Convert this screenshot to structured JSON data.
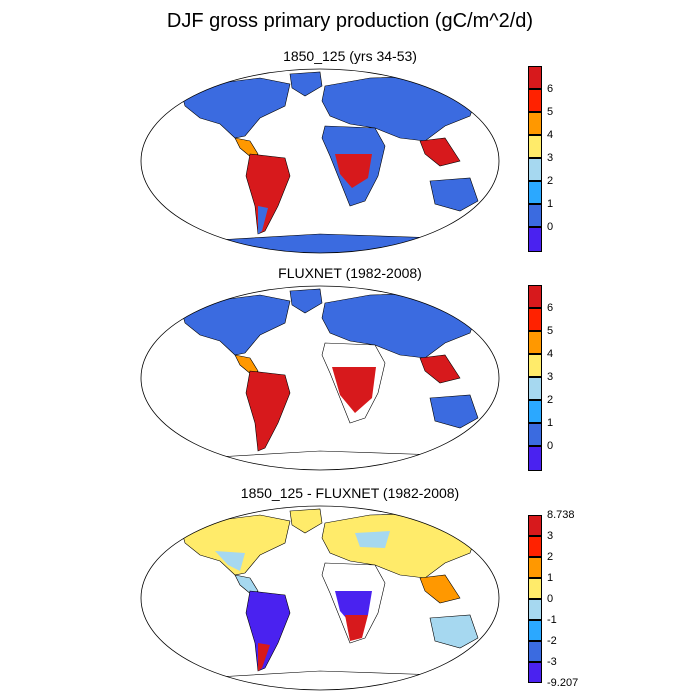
{
  "title": "DJF gross primary production (gC/m^2/d)",
  "panels": [
    {
      "title": "1850_125 (yrs 34-53)",
      "kind": "model"
    },
    {
      "title": "FLUXNET (1982-2008)",
      "kind": "obs"
    },
    {
      "title": "1850_125 - FLUXNET (1982-2008)",
      "kind": "diff"
    }
  ],
  "colorbars": [
    {
      "colors": [
        "#d7191c",
        "#ff2200",
        "#ff9800",
        "#ffeb6a",
        "#a6d8f0",
        "#2ba8ff",
        "#3b6be0",
        "#4a22f0"
      ],
      "labels": [
        "6",
        "5",
        "4",
        "3",
        "2",
        "1",
        "0"
      ],
      "extra_labels": []
    },
    {
      "colors": [
        "#d7191c",
        "#ff2200",
        "#ff9800",
        "#ffeb6a",
        "#a6d8f0",
        "#2ba8ff",
        "#3b6be0",
        "#4a22f0"
      ],
      "labels": [
        "6",
        "5",
        "4",
        "3",
        "2",
        "1",
        "0"
      ],
      "extra_labels": []
    },
    {
      "colors": [
        "#d7191c",
        "#ff2200",
        "#ff9800",
        "#ffeb6a",
        "#a6d8f0",
        "#2ba8ff",
        "#3b6be0",
        "#4a22f0"
      ],
      "labels": [
        "3",
        "2",
        "1",
        "0",
        "-1",
        "-2",
        "-3"
      ],
      "extra_labels": [
        "8.738",
        "-9.207"
      ]
    }
  ],
  "map_colors": {
    "ocean": "#ffffff",
    "land_low": "#3b6be0",
    "tropic_high": "#d7191c",
    "mid": "#ff9800",
    "diff_pos": "#ffeb6a",
    "diff_zero": "#a6d8f0",
    "diff_neg": "#4a22f0"
  }
}
